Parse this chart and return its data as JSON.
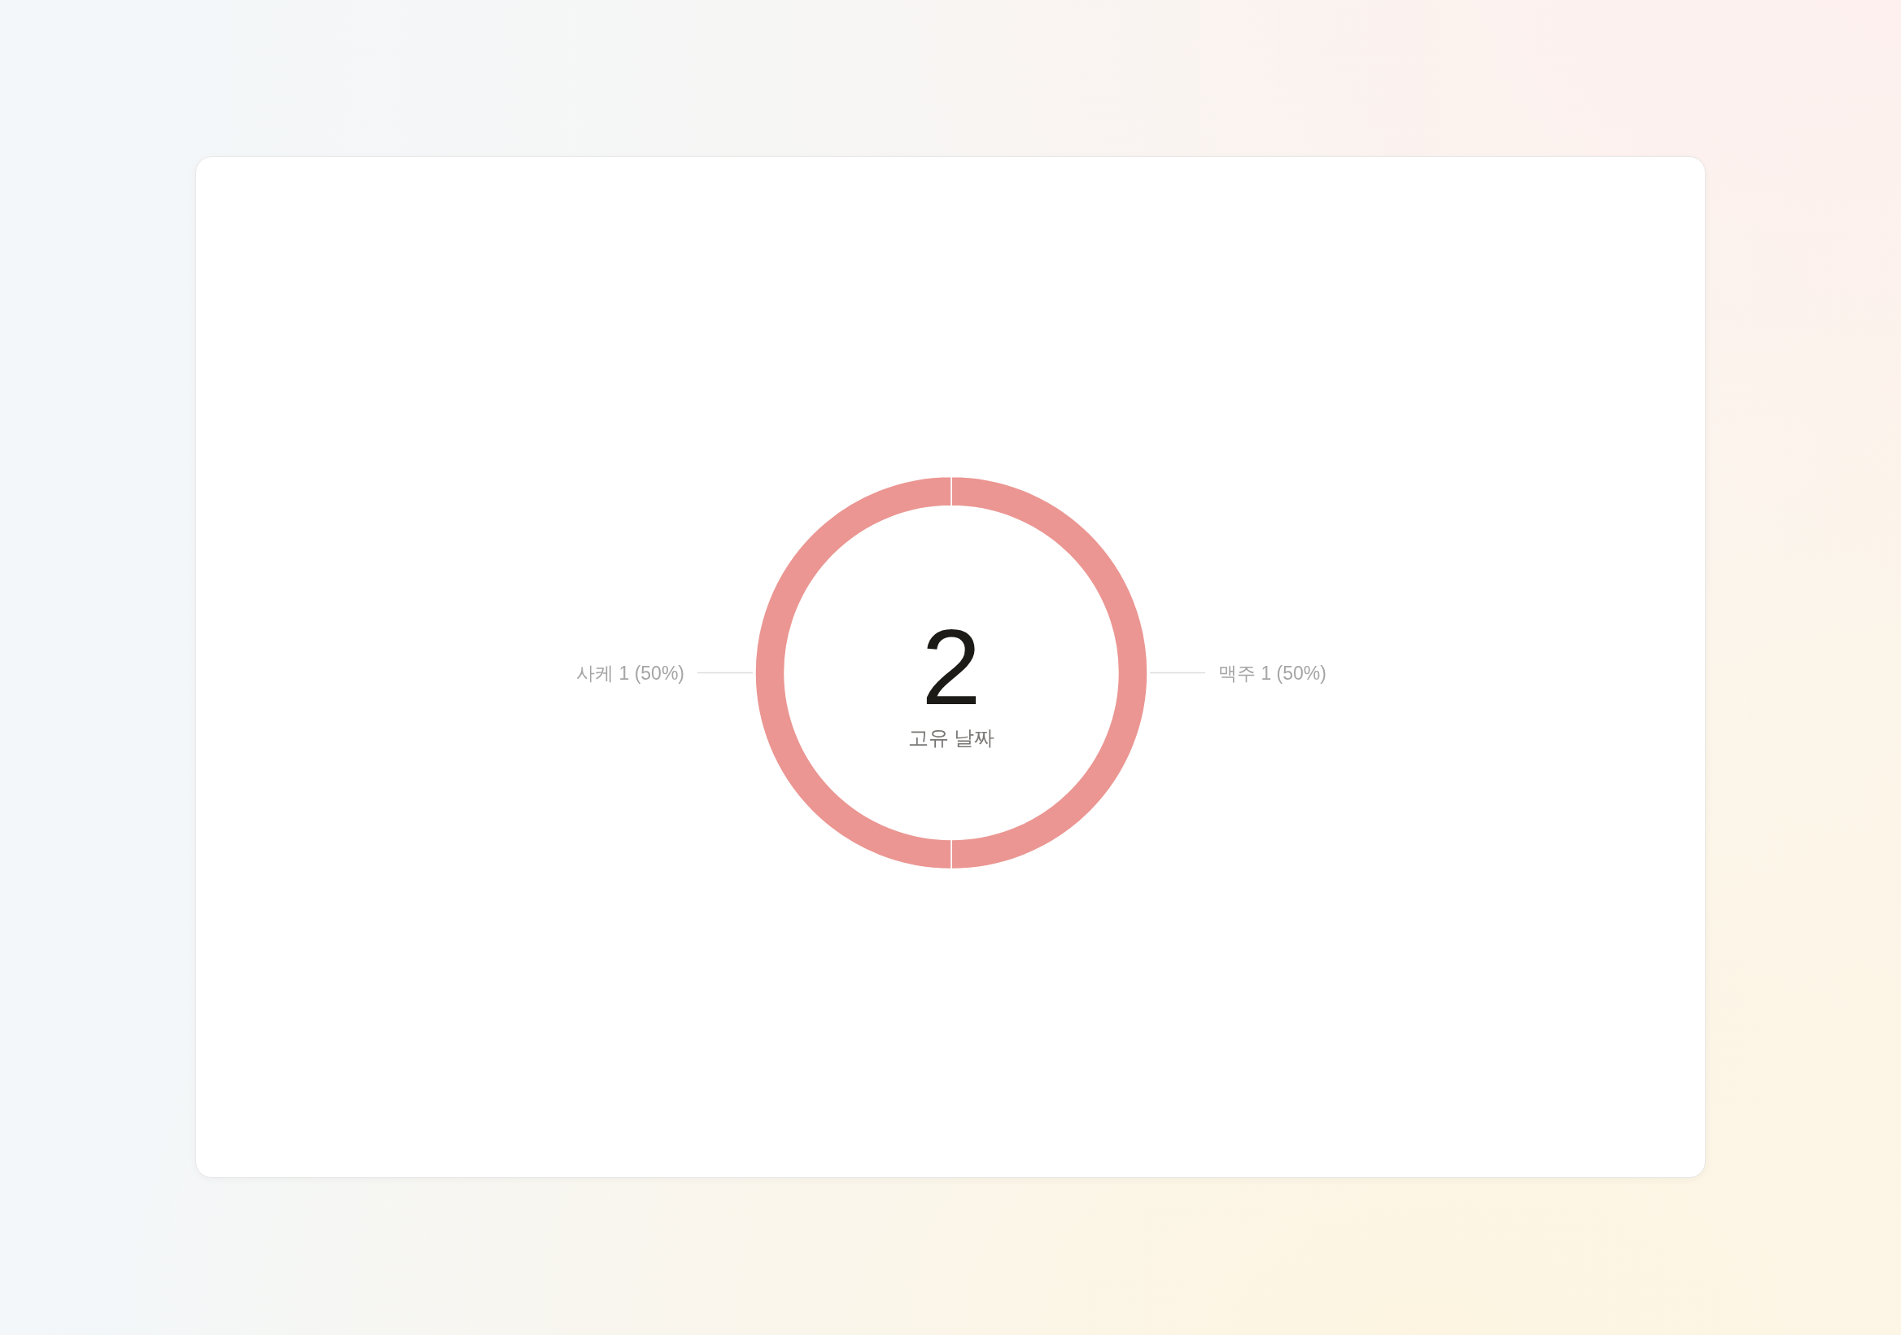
{
  "chart_data": {
    "type": "donut",
    "categories": [
      "맥주",
      "사케"
    ],
    "values": [
      1,
      1
    ],
    "colors": [
      "#eb9692",
      "#eb9692"
    ],
    "value_labels": [
      "1 (50%)",
      "1 (50%)"
    ],
    "annotations": [
      "2",
      "고유 날짜"
    ]
  }
}
